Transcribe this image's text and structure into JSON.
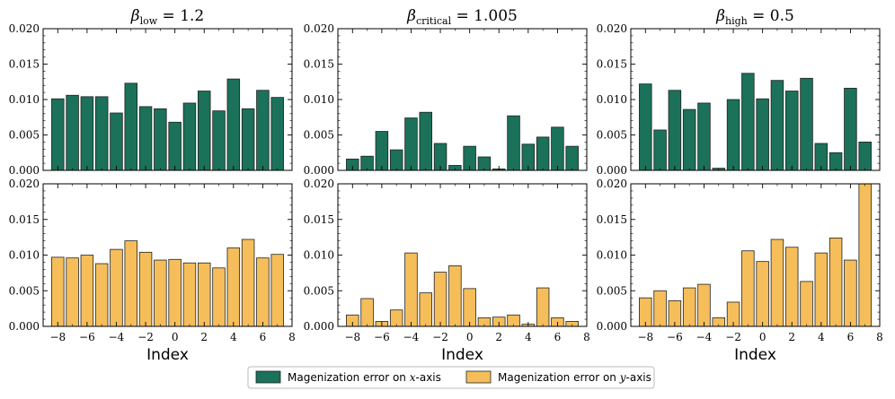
{
  "chart_data": {
    "type": "bar",
    "x": [
      -8,
      -7,
      -6,
      -5,
      -4,
      -3,
      -2,
      -1,
      0,
      1,
      2,
      3,
      4,
      5,
      6,
      7
    ],
    "xlabel": "Index",
    "xticks": [
      -8,
      -6,
      -4,
      -2,
      0,
      2,
      4,
      6,
      8
    ],
    "xlim": [
      -9,
      8
    ],
    "ylim": [
      0,
      0.02
    ],
    "yticks": [
      "0.000",
      "0.005",
      "0.010",
      "0.015",
      "0.020"
    ],
    "colors": {
      "x": "#1b7159",
      "y": "#f5be5b",
      "edge": "#222222"
    },
    "columns": [
      {
        "title_base": "β",
        "title_sub": "low",
        "title_rest": " = 1.2",
        "x_series": [
          0.0101,
          0.0106,
          0.0104,
          0.0104,
          0.0081,
          0.0123,
          0.009,
          0.0087,
          0.0068,
          0.0095,
          0.0112,
          0.0084,
          0.0129,
          0.0087,
          0.0113,
          0.0103
        ],
        "y_series": [
          0.0097,
          0.0096,
          0.01,
          0.0088,
          0.0108,
          0.012,
          0.0104,
          0.0093,
          0.0094,
          0.0089,
          0.0089,
          0.0082,
          0.011,
          0.0122,
          0.0096,
          0.0101
        ]
      },
      {
        "title_base": "β",
        "title_sub": "critical",
        "title_rest": " = 1.005",
        "x_series": [
          0.0016,
          0.002,
          0.0055,
          0.0029,
          0.0074,
          0.0082,
          0.0038,
          0.0007,
          0.0034,
          0.0019,
          0.0002,
          0.0077,
          0.0037,
          0.0047,
          0.0061,
          0.0034
        ],
        "y_series": [
          0.0016,
          0.0039,
          0.0007,
          0.0023,
          0.0103,
          0.0047,
          0.0076,
          0.0085,
          0.0053,
          0.0012,
          0.0013,
          0.0016,
          0.0003,
          0.0054,
          0.0012,
          0.0007
        ]
      },
      {
        "title_base": "β",
        "title_sub": "high",
        "title_rest": " = 0.5",
        "x_series": [
          0.0122,
          0.0057,
          0.0113,
          0.0086,
          0.0095,
          0.0003,
          0.01,
          0.0137,
          0.0101,
          0.0127,
          0.0112,
          0.013,
          0.0038,
          0.0025,
          0.0116,
          0.004
        ],
        "y_series": [
          0.004,
          0.005,
          0.0036,
          0.0054,
          0.0059,
          0.0012,
          0.0034,
          0.0106,
          0.0091,
          0.0122,
          0.0111,
          0.0063,
          0.0103,
          0.0124,
          0.0093,
          0.02
        ]
      }
    ],
    "legend": {
      "position": "bottom-center",
      "entries": [
        {
          "label_pre": "Magenization error on ",
          "label_var": "x",
          "label_post": "-axis",
          "series": "x"
        },
        {
          "label_pre": "Magenization error on ",
          "label_var": "y",
          "label_post": "-axis",
          "series": "y"
        }
      ]
    }
  }
}
